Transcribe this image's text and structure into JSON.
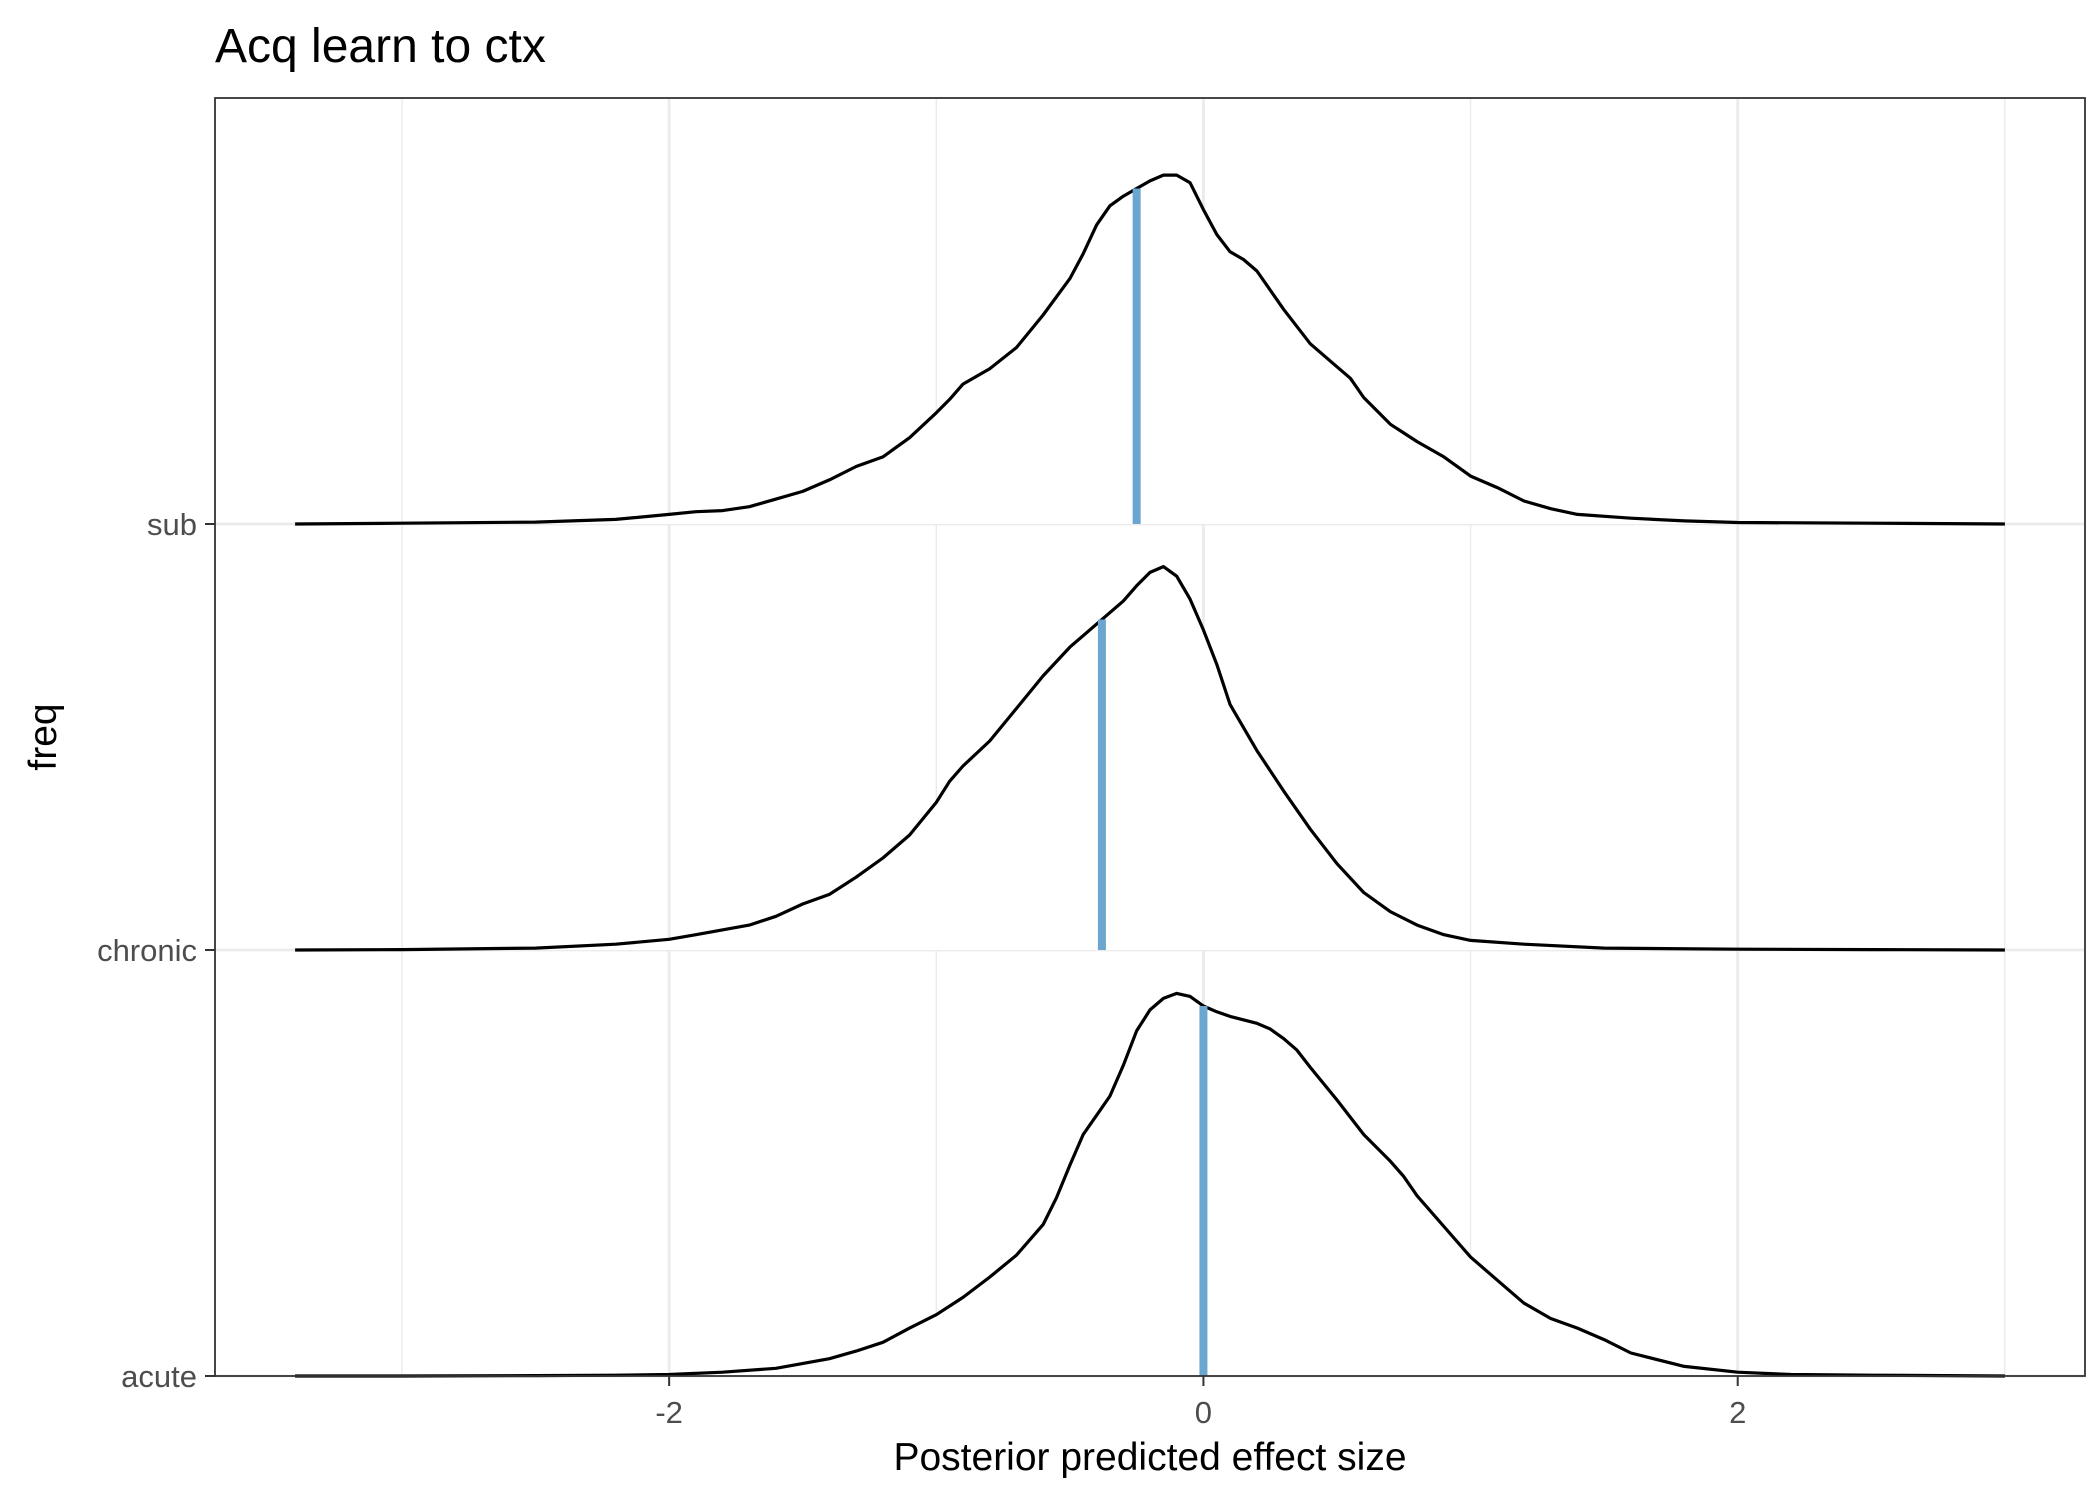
{
  "chart_data": {
    "type": "ridgeline-density",
    "title": "Acq learn to ctx",
    "xlabel": "Posterior predicted effect size",
    "ylabel": "freq",
    "xlim": [
      -3.7,
      3.3
    ],
    "x_ticks": [
      -2,
      0,
      2
    ],
    "x_tick_labels": [
      "-2",
      "0",
      "2"
    ],
    "categories": [
      "acute",
      "chronic",
      "sub"
    ],
    "grid": true,
    "colors": {
      "density_line": "#000000",
      "median_line": "#6aa6cf",
      "grid": "#ebebeb",
      "panel_border": "#333333",
      "tick_text": "#4d4d4d"
    },
    "ridge_scale": 0.9,
    "series": [
      {
        "name": "acute",
        "median": 0.0,
        "density": [
          [
            -3.4,
            0.0
          ],
          [
            -3.0,
            0.0
          ],
          [
            -2.5,
            0.001
          ],
          [
            -2.2,
            0.002
          ],
          [
            -2.0,
            0.004
          ],
          [
            -1.8,
            0.01
          ],
          [
            -1.6,
            0.02
          ],
          [
            -1.4,
            0.045
          ],
          [
            -1.3,
            0.065
          ],
          [
            -1.2,
            0.088
          ],
          [
            -1.1,
            0.125
          ],
          [
            -1.0,
            0.16
          ],
          [
            -0.9,
            0.205
          ],
          [
            -0.8,
            0.258
          ],
          [
            -0.7,
            0.315
          ],
          [
            -0.6,
            0.395
          ],
          [
            -0.55,
            0.465
          ],
          [
            -0.5,
            0.55
          ],
          [
            -0.45,
            0.63
          ],
          [
            -0.4,
            0.68
          ],
          [
            -0.35,
            0.73
          ],
          [
            -0.3,
            0.81
          ],
          [
            -0.25,
            0.9
          ],
          [
            -0.2,
            0.955
          ],
          [
            -0.15,
            0.985
          ],
          [
            -0.1,
            0.998
          ],
          [
            -0.05,
            0.99
          ],
          [
            0.0,
            0.965
          ],
          [
            0.05,
            0.95
          ],
          [
            0.1,
            0.938
          ],
          [
            0.2,
            0.92
          ],
          [
            0.25,
            0.905
          ],
          [
            0.3,
            0.88
          ],
          [
            0.35,
            0.85
          ],
          [
            0.4,
            0.805
          ],
          [
            0.5,
            0.72
          ],
          [
            0.6,
            0.63
          ],
          [
            0.7,
            0.56
          ],
          [
            0.75,
            0.52
          ],
          [
            0.8,
            0.47
          ],
          [
            0.9,
            0.39
          ],
          [
            1.0,
            0.31
          ],
          [
            1.1,
            0.25
          ],
          [
            1.2,
            0.19
          ],
          [
            1.3,
            0.15
          ],
          [
            1.4,
            0.125
          ],
          [
            1.5,
            0.095
          ],
          [
            1.6,
            0.06
          ],
          [
            1.8,
            0.025
          ],
          [
            2.0,
            0.01
          ],
          [
            2.2,
            0.004
          ],
          [
            2.5,
            0.002
          ],
          [
            3.0,
            0.0
          ]
        ]
      },
      {
        "name": "chronic",
        "median": -0.38,
        "density": [
          [
            -3.4,
            0.0
          ],
          [
            -3.0,
            0.001
          ],
          [
            -2.5,
            0.005
          ],
          [
            -2.2,
            0.015
          ],
          [
            -2.0,
            0.028
          ],
          [
            -1.9,
            0.04
          ],
          [
            -1.7,
            0.065
          ],
          [
            -1.6,
            0.088
          ],
          [
            -1.5,
            0.12
          ],
          [
            -1.4,
            0.145
          ],
          [
            -1.3,
            0.19
          ],
          [
            -1.2,
            0.24
          ],
          [
            -1.1,
            0.3
          ],
          [
            -1.0,
            0.385
          ],
          [
            -0.95,
            0.44
          ],
          [
            -0.9,
            0.48
          ],
          [
            -0.8,
            0.545
          ],
          [
            -0.7,
            0.63
          ],
          [
            -0.6,
            0.715
          ],
          [
            -0.5,
            0.79
          ],
          [
            -0.4,
            0.85
          ],
          [
            -0.3,
            0.91
          ],
          [
            -0.25,
            0.95
          ],
          [
            -0.2,
            0.985
          ],
          [
            -0.15,
            1.0
          ],
          [
            -0.1,
            0.975
          ],
          [
            -0.05,
            0.915
          ],
          [
            0.0,
            0.835
          ],
          [
            0.05,
            0.745
          ],
          [
            0.1,
            0.64
          ],
          [
            0.2,
            0.52
          ],
          [
            0.3,
            0.415
          ],
          [
            0.4,
            0.315
          ],
          [
            0.5,
            0.225
          ],
          [
            0.6,
            0.15
          ],
          [
            0.7,
            0.1
          ],
          [
            0.8,
            0.065
          ],
          [
            0.9,
            0.04
          ],
          [
            1.0,
            0.025
          ],
          [
            1.2,
            0.015
          ],
          [
            1.5,
            0.005
          ],
          [
            2.0,
            0.002
          ],
          [
            2.5,
            0.001
          ],
          [
            3.0,
            0.0
          ]
        ]
      },
      {
        "name": "sub",
        "median": -0.25,
        "density": [
          [
            -3.4,
            0.0
          ],
          [
            -3.0,
            0.002
          ],
          [
            -2.5,
            0.005
          ],
          [
            -2.2,
            0.012
          ],
          [
            -2.0,
            0.025
          ],
          [
            -1.9,
            0.032
          ],
          [
            -1.8,
            0.035
          ],
          [
            -1.7,
            0.045
          ],
          [
            -1.6,
            0.065
          ],
          [
            -1.5,
            0.085
          ],
          [
            -1.4,
            0.115
          ],
          [
            -1.3,
            0.15
          ],
          [
            -1.2,
            0.175
          ],
          [
            -1.1,
            0.225
          ],
          [
            -1.0,
            0.29
          ],
          [
            -0.95,
            0.325
          ],
          [
            -0.9,
            0.365
          ],
          [
            -0.8,
            0.405
          ],
          [
            -0.7,
            0.46
          ],
          [
            -0.6,
            0.545
          ],
          [
            -0.5,
            0.64
          ],
          [
            -0.45,
            0.705
          ],
          [
            -0.4,
            0.78
          ],
          [
            -0.35,
            0.83
          ],
          [
            -0.3,
            0.855
          ],
          [
            -0.25,
            0.875
          ],
          [
            -0.2,
            0.895
          ],
          [
            -0.15,
            0.91
          ],
          [
            -0.1,
            0.91
          ],
          [
            -0.05,
            0.89
          ],
          [
            0.0,
            0.82
          ],
          [
            0.05,
            0.755
          ],
          [
            0.1,
            0.71
          ],
          [
            0.15,
            0.69
          ],
          [
            0.2,
            0.66
          ],
          [
            0.3,
            0.56
          ],
          [
            0.4,
            0.47
          ],
          [
            0.5,
            0.41
          ],
          [
            0.55,
            0.38
          ],
          [
            0.6,
            0.33
          ],
          [
            0.7,
            0.26
          ],
          [
            0.8,
            0.215
          ],
          [
            0.9,
            0.175
          ],
          [
            1.0,
            0.125
          ],
          [
            1.1,
            0.095
          ],
          [
            1.2,
            0.06
          ],
          [
            1.3,
            0.04
          ],
          [
            1.4,
            0.025
          ],
          [
            1.6,
            0.015
          ],
          [
            1.8,
            0.008
          ],
          [
            2.0,
            0.004
          ],
          [
            2.5,
            0.002
          ],
          [
            3.0,
            0.0
          ]
        ]
      }
    ]
  }
}
